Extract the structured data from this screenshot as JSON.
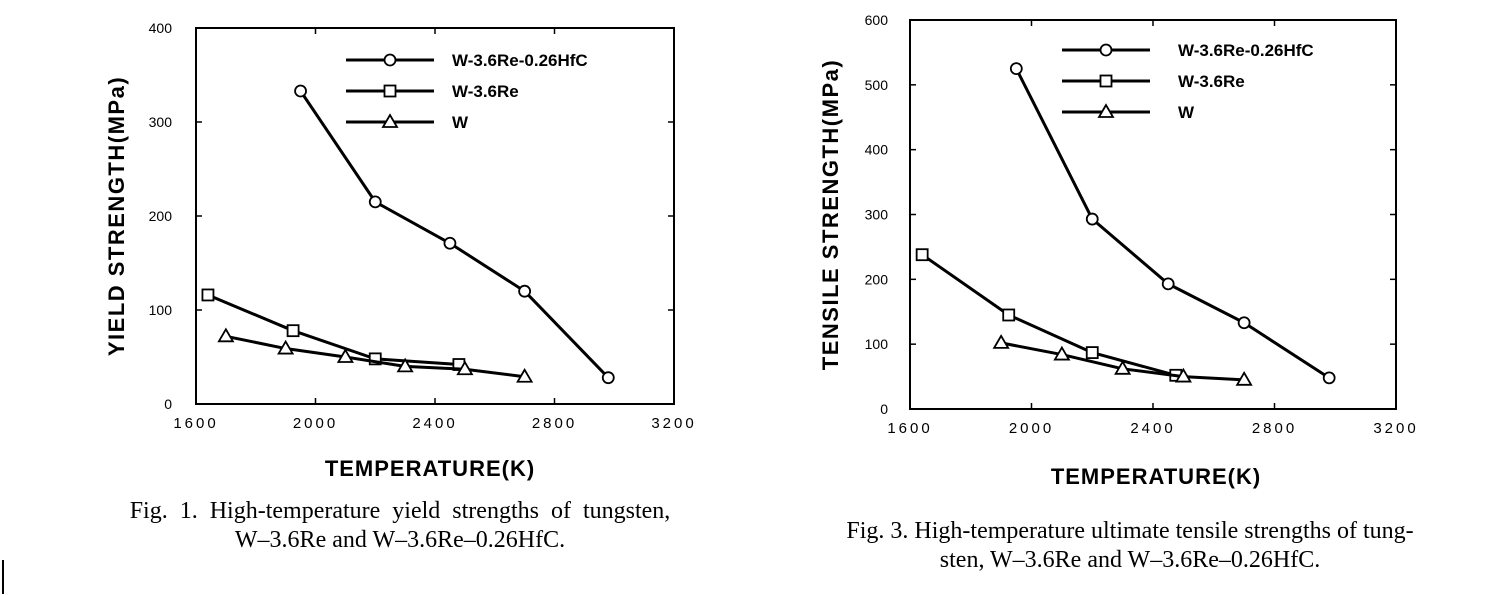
{
  "chart_data": [
    {
      "type": "line",
      "xlabel": "TEMPERATURE(K)",
      "ylabel": "YIELD STRENGTH(MPa)",
      "xlim": [
        1600,
        3200
      ],
      "ylim": [
        0,
        400
      ],
      "xticks": [
        1600,
        2000,
        2400,
        2800,
        3200
      ],
      "yticks": [
        0,
        100,
        200,
        300,
        400
      ],
      "legend_position": "top-right",
      "series": [
        {
          "name": "W-3.6Re-0.26HfC",
          "marker": "circle",
          "x": [
            1950,
            2200,
            2450,
            2700,
            2980
          ],
          "y": [
            333,
            215,
            171,
            120,
            28
          ]
        },
        {
          "name": "W-3.6Re",
          "marker": "square",
          "x": [
            1640,
            1925,
            2200,
            2480
          ],
          "y": [
            116,
            78,
            48,
            42
          ]
        },
        {
          "name": "W",
          "marker": "triangle",
          "x": [
            1700,
            1900,
            2100,
            2300,
            2500,
            2700
          ],
          "y": [
            72,
            59,
            50,
            40,
            37,
            29
          ]
        }
      ],
      "caption": [
        "Fig.  1.  High-temperature  yield  strengths  of  tungsten,",
        "W–3.6Re and W–3.6Re–0.26HfC."
      ]
    },
    {
      "type": "line",
      "xlabel": "TEMPERATURE(K)",
      "ylabel": "TENSILE STRENGTH(MPa)",
      "xlim": [
        1600,
        3200
      ],
      "ylim": [
        0,
        600
      ],
      "xticks": [
        1600,
        2000,
        2400,
        2800,
        3200
      ],
      "yticks": [
        0,
        100,
        200,
        300,
        400,
        500,
        600
      ],
      "legend_position": "top-right",
      "series": [
        {
          "name": "W-3.6Re-0.26HfC",
          "marker": "circle",
          "x": [
            1950,
            2200,
            2450,
            2700,
            2980
          ],
          "y": [
            525,
            293,
            193,
            133,
            48
          ]
        },
        {
          "name": "W-3.6Re",
          "marker": "square",
          "x": [
            1640,
            1925,
            2200,
            2475
          ],
          "y": [
            238,
            145,
            87,
            52
          ]
        },
        {
          "name": "W",
          "marker": "triangle",
          "x": [
            1900,
            2100,
            2300,
            2500,
            2700
          ],
          "y": [
            102,
            84,
            62,
            50,
            45
          ]
        }
      ],
      "caption": [
        "Fig. 3. High-temperature ultimate tensile strengths of tung-",
        "sten, W–3.6Re and W–3.6Re–0.26HfC."
      ]
    }
  ]
}
